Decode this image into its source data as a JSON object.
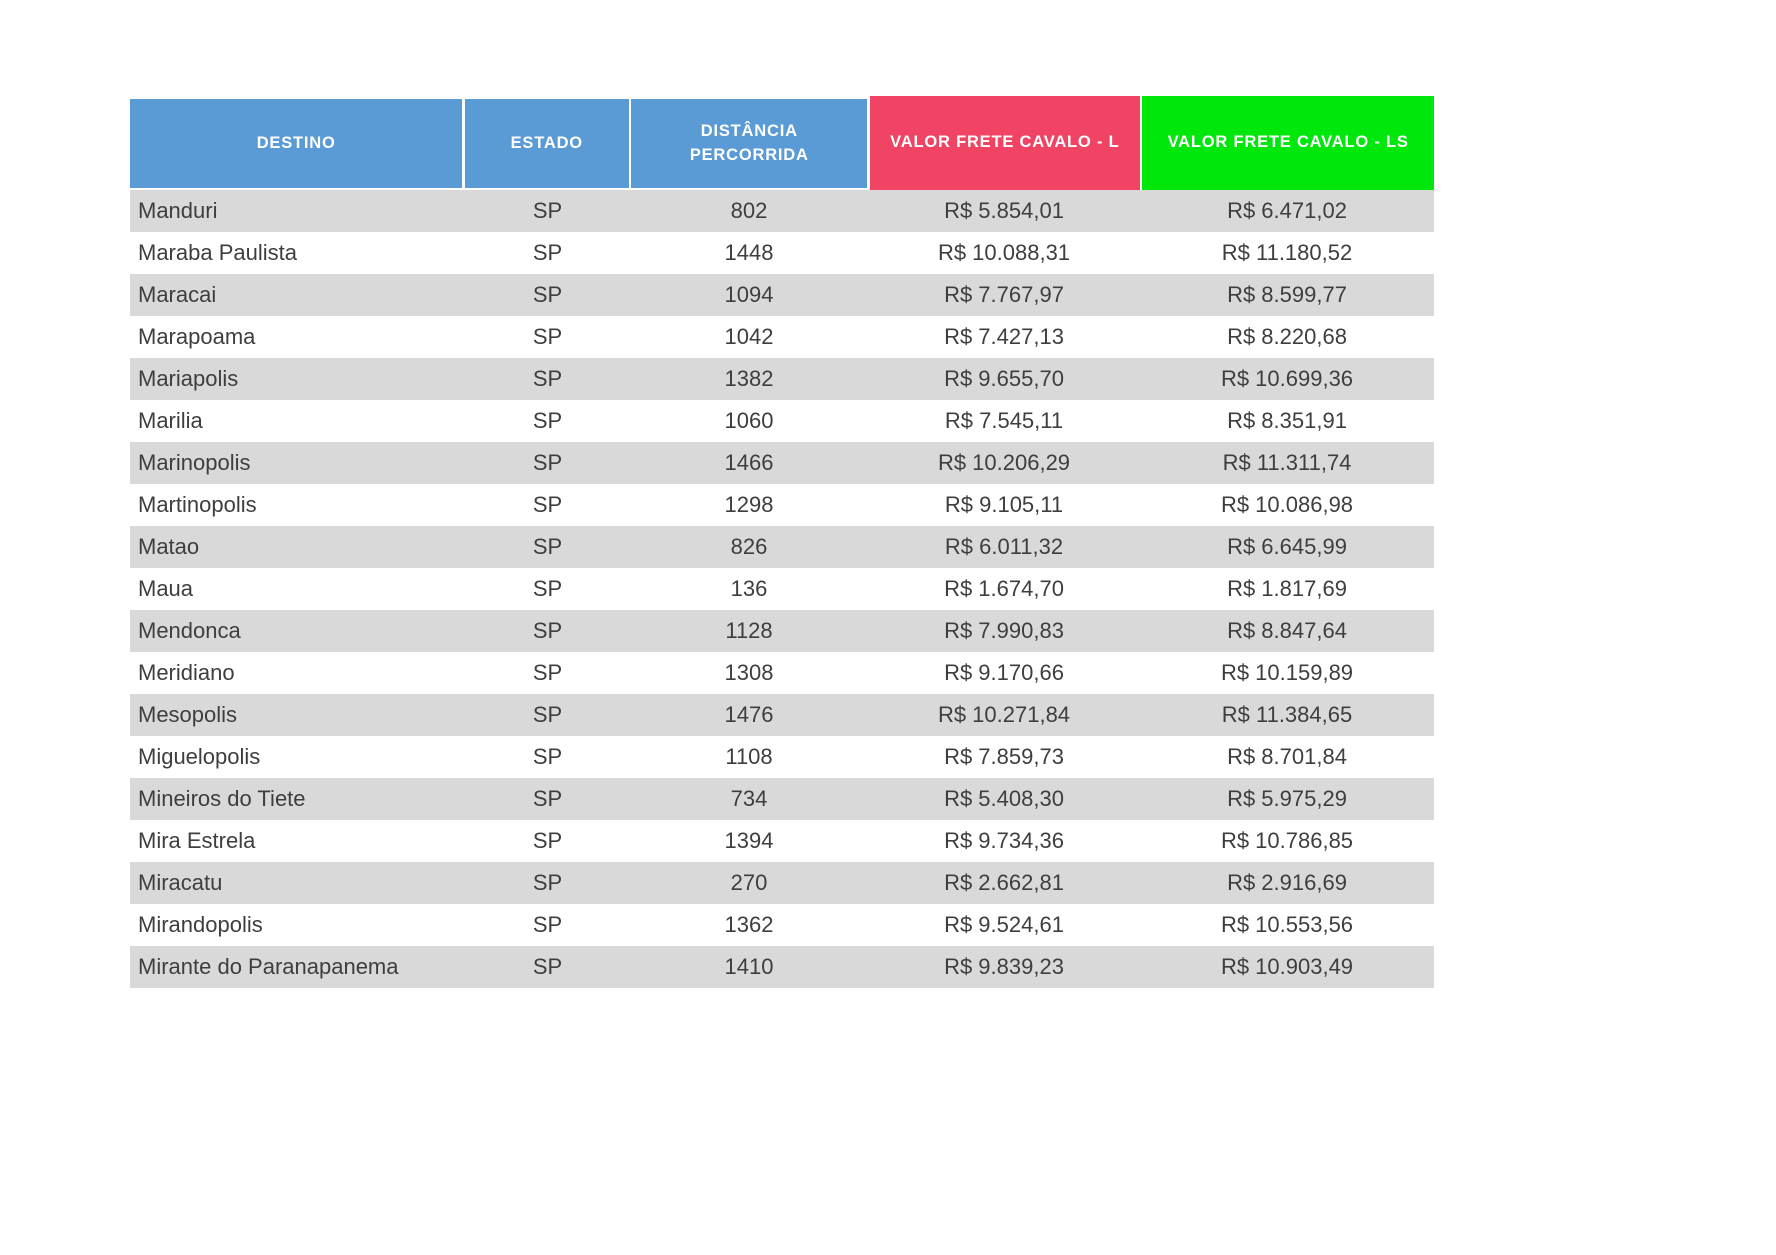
{
  "table": {
    "header_text_color": "#FFFFFF",
    "striped_row_color": "#D9D9D9",
    "body_text_color": "#3E3E3E",
    "columns": [
      {
        "id": "destino",
        "label": "DESTINO",
        "color": "#5B9BD5"
      },
      {
        "id": "estado",
        "label": "ESTADO",
        "color": "#5B9BD5"
      },
      {
        "id": "distancia",
        "label": "DISTÂNCIA PERCORRIDA",
        "color": "#5B9BD5"
      },
      {
        "id": "valor_l",
        "label": "VALOR FRETE CAVALO - L",
        "color": "#F14364"
      },
      {
        "id": "valor_ls",
        "label": "VALOR FRETE CAVALO - LS",
        "color": "#00E70C"
      }
    ],
    "rows": [
      {
        "destino": "Manduri",
        "estado": "SP",
        "distancia": "802",
        "valor_l": "R$ 5.854,01",
        "valor_ls": "R$ 6.471,02"
      },
      {
        "destino": "Maraba Paulista",
        "estado": "SP",
        "distancia": "1448",
        "valor_l": "R$ 10.088,31",
        "valor_ls": "R$ 11.180,52"
      },
      {
        "destino": "Maracai",
        "estado": "SP",
        "distancia": "1094",
        "valor_l": "R$ 7.767,97",
        "valor_ls": "R$ 8.599,77"
      },
      {
        "destino": "Marapoama",
        "estado": "SP",
        "distancia": "1042",
        "valor_l": "R$ 7.427,13",
        "valor_ls": "R$ 8.220,68"
      },
      {
        "destino": "Mariapolis",
        "estado": "SP",
        "distancia": "1382",
        "valor_l": "R$ 9.655,70",
        "valor_ls": "R$ 10.699,36"
      },
      {
        "destino": "Marilia",
        "estado": "SP",
        "distancia": "1060",
        "valor_l": "R$ 7.545,11",
        "valor_ls": "R$ 8.351,91"
      },
      {
        "destino": "Marinopolis",
        "estado": "SP",
        "distancia": "1466",
        "valor_l": "R$ 10.206,29",
        "valor_ls": "R$ 11.311,74"
      },
      {
        "destino": "Martinopolis",
        "estado": "SP",
        "distancia": "1298",
        "valor_l": "R$ 9.105,11",
        "valor_ls": "R$ 10.086,98"
      },
      {
        "destino": "Matao",
        "estado": "SP",
        "distancia": "826",
        "valor_l": "R$ 6.011,32",
        "valor_ls": "R$ 6.645,99"
      },
      {
        "destino": "Maua",
        "estado": "SP",
        "distancia": "136",
        "valor_l": "R$ 1.674,70",
        "valor_ls": "R$ 1.817,69"
      },
      {
        "destino": "Mendonca",
        "estado": "SP",
        "distancia": "1128",
        "valor_l": "R$ 7.990,83",
        "valor_ls": "R$ 8.847,64"
      },
      {
        "destino": "Meridiano",
        "estado": "SP",
        "distancia": "1308",
        "valor_l": "R$ 9.170,66",
        "valor_ls": "R$ 10.159,89"
      },
      {
        "destino": "Mesopolis",
        "estado": "SP",
        "distancia": "1476",
        "valor_l": "R$ 10.271,84",
        "valor_ls": "R$ 11.384,65"
      },
      {
        "destino": "Miguelopolis",
        "estado": "SP",
        "distancia": "1108",
        "valor_l": "R$ 7.859,73",
        "valor_ls": "R$ 8.701,84"
      },
      {
        "destino": "Mineiros do Tiete",
        "estado": "SP",
        "distancia": "734",
        "valor_l": "R$ 5.408,30",
        "valor_ls": "R$ 5.975,29"
      },
      {
        "destino": "Mira Estrela",
        "estado": "SP",
        "distancia": "1394",
        "valor_l": "R$ 9.734,36",
        "valor_ls": "R$ 10.786,85"
      },
      {
        "destino": "Miracatu",
        "estado": "SP",
        "distancia": "270",
        "valor_l": "R$ 2.662,81",
        "valor_ls": "R$ 2.916,69"
      },
      {
        "destino": "Mirandopolis",
        "estado": "SP",
        "distancia": "1362",
        "valor_l": "R$ 9.524,61",
        "valor_ls": "R$ 10.553,56"
      },
      {
        "destino": "Mirante do Paranapanema",
        "estado": "SP",
        "distancia": "1410",
        "valor_l": "R$ 9.839,23",
        "valor_ls": "R$ 10.903,49"
      }
    ]
  }
}
